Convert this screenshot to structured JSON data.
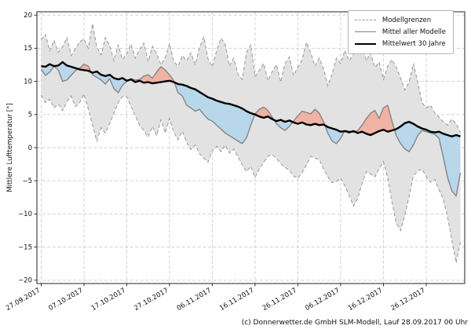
{
  "footer": "(c) Donnerwetter.de GmbH SLM-Modell, Lauf 28.09.2017 00 Uhr",
  "chart_data": {
    "type": "line",
    "title": "",
    "xlabel": "",
    "ylabel": "Mittlere Lufttemperatur [°]",
    "grid": true,
    "legend": {
      "position": "top-right",
      "entries": [
        "Modellgrenzen",
        "Mittel aller Modelle",
        "Mittelwert 30 Jahre"
      ]
    },
    "ylim": [
      -20.5,
      20.5
    ],
    "y_ticks": [
      -20,
      -15,
      -10,
      -5,
      0,
      5,
      10,
      15,
      20
    ],
    "y_tick_labels": [
      "−20",
      "−15",
      "−10",
      "−5",
      "0",
      "5",
      "10",
      "15",
      "20"
    ],
    "x_range_days": [
      -1,
      99
    ],
    "x_tick_days": [
      0,
      10,
      20,
      30,
      40,
      50,
      60,
      70,
      80,
      90
    ],
    "x_tick_labels": [
      "27.09.2017",
      "07.10.2017",
      "17.10.2017",
      "27.10.2017",
      "06.11.2017",
      "16.11.2017",
      "26.11.2017",
      "06.12.2017",
      "16.12.2017",
      "26.12.2017"
    ],
    "colors": {
      "band": "#e2e2e2",
      "band_edge": "#979797",
      "warm": "#f0b2a4",
      "cold": "#b8d7ea",
      "model_mean": "#7f7f7f",
      "mean30": "#000000",
      "grid": "#cccccc"
    },
    "band": {
      "name": "Modellgrenzen",
      "upper": [
        16.3,
        17.1,
        14.6,
        16.2,
        14.4,
        15.2,
        16.6,
        13.9,
        14.9,
        16.0,
        16.4,
        15.0,
        18.7,
        15.2,
        14.0,
        16.6,
        15.4,
        13.1,
        15.5,
        13.3,
        14.2,
        15.6,
        13.5,
        14.8,
        15.8,
        13.0,
        15.3,
        14.2,
        12.5,
        13.6,
        15.7,
        13.0,
        12.3,
        13.9,
        13.1,
        14.3,
        12.5,
        15.1,
        16.7,
        13.4,
        12.2,
        14.6,
        16.5,
        15.7,
        12.3,
        13.5,
        11.1,
        10.3,
        14.4,
        15.5,
        10.7,
        11.7,
        12.7,
        10.1,
        11.5,
        12.5,
        9.9,
        12.7,
        13.7,
        10.9,
        12.1,
        13.3,
        15.9,
        14.3,
        12.3,
        13.5,
        11.9,
        9.3,
        11.1,
        13.5,
        12.7,
        14.7,
        13.1,
        14.1,
        16.3,
        15.3,
        13.1,
        14.3,
        12.1,
        12.9,
        10.3,
        12.3,
        13.3,
        12.1,
        10.5,
        8.7,
        9.9,
        12.7,
        10.0,
        6.8,
        6.0,
        6.4,
        5.2,
        4.6,
        3.9,
        3.4,
        4.3,
        3.6,
        2.3
      ],
      "lower": [
        7.9,
        6.8,
        7.3,
        6.0,
        6.6,
        5.6,
        6.9,
        7.8,
        6.2,
        6.8,
        8.1,
        5.9,
        3.4,
        1.0,
        3.0,
        2.2,
        3.6,
        5.2,
        6.8,
        7.7,
        7.7,
        6.2,
        4.8,
        3.4,
        2.6,
        1.6,
        3.2,
        1.8,
        4.2,
        2.2,
        4.4,
        2.3,
        1.2,
        2.5,
        0.8,
        -0.3,
        0.4,
        -0.9,
        -1.6,
        -2.2,
        -0.5,
        0.2,
        -0.6,
        0.4,
        -0.8,
        -0.2,
        -1.4,
        -2.6,
        -3.6,
        -2.8,
        -4.5,
        -3.2,
        -2.2,
        -1.3,
        -1.1,
        -1.6,
        -2.4,
        -3.0,
        -3.4,
        -4.3,
        -4.6,
        -3.8,
        -2.6,
        -1.3,
        -1.6,
        -1.8,
        -3.2,
        -4.4,
        -5.3,
        -5.1,
        -4.6,
        -5.8,
        -7.2,
        -8.8,
        -7.6,
        -5.4,
        -3.6,
        -4.0,
        -4.4,
        -3.2,
        -2.1,
        -4.6,
        -8.2,
        -11.4,
        -12.5,
        -10.2,
        -7.4,
        -4.2,
        -3.6,
        -3.2,
        -4.4,
        -5.2,
        -4.8,
        -6.4,
        -7.8,
        -10.5,
        -14.0,
        -17.4,
        -14.2
      ]
    },
    "series": [
      {
        "name": "Mittel aller Modelle",
        "values": [
          11.8,
          10.9,
          11.4,
          12.3,
          11.7,
          10.0,
          10.2,
          10.9,
          11.6,
          12.0,
          12.6,
          12.3,
          11.0,
          10.6,
          10.2,
          9.6,
          10.4,
          8.9,
          8.3,
          9.4,
          10.0,
          10.4,
          10.2,
          10.3,
          10.8,
          11.0,
          10.5,
          11.4,
          12.2,
          11.7,
          11.0,
          10.1,
          8.3,
          7.8,
          6.4,
          6.0,
          5.5,
          5.8,
          5.0,
          4.3,
          4.0,
          3.4,
          2.8,
          2.2,
          1.8,
          1.4,
          1.0,
          0.6,
          1.5,
          3.4,
          5.1,
          5.8,
          6.1,
          5.6,
          4.6,
          3.6,
          3.0,
          2.6,
          3.2,
          4.0,
          4.8,
          5.5,
          5.3,
          5.1,
          5.8,
          5.2,
          3.9,
          2.2,
          1.0,
          0.6,
          1.4,
          2.6,
          2.5,
          2.3,
          2.6,
          3.4,
          4.4,
          5.2,
          5.6,
          4.4,
          6.0,
          6.4,
          4.0,
          1.8,
          0.6,
          -0.2,
          -0.6,
          0.4,
          1.8,
          2.6,
          2.4,
          2.2,
          2.0,
          1.4,
          -1.5,
          -4.5,
          -6.5,
          -7.3,
          -3.8
        ]
      },
      {
        "name": "Mittelwert 30 Jahre",
        "values": [
          12.3,
          12.2,
          12.6,
          12.3,
          12.4,
          12.9,
          12.4,
          12.2,
          12.0,
          11.8,
          11.7,
          11.6,
          11.3,
          11.5,
          11.0,
          10.8,
          11.0,
          10.5,
          10.3,
          10.5,
          10.1,
          10.3,
          9.9,
          10.1,
          9.8,
          9.9,
          9.7,
          9.8,
          9.9,
          10.0,
          10.1,
          9.9,
          9.6,
          9.5,
          9.3,
          9.0,
          8.8,
          8.4,
          8.0,
          7.6,
          7.4,
          7.1,
          6.9,
          6.7,
          6.6,
          6.4,
          6.2,
          5.9,
          5.5,
          5.2,
          5.0,
          4.7,
          4.5,
          4.7,
          4.3,
          4.0,
          4.2,
          3.9,
          4.1,
          3.8,
          3.6,
          3.8,
          3.5,
          3.4,
          3.6,
          3.4,
          3.5,
          3.1,
          2.9,
          2.7,
          2.4,
          2.5,
          2.3,
          2.5,
          2.2,
          2.4,
          2.1,
          1.9,
          2.2,
          2.5,
          2.7,
          2.4,
          2.6,
          2.8,
          3.2,
          3.7,
          3.9,
          3.6,
          3.2,
          2.9,
          2.7,
          2.4,
          2.3,
          2.4,
          2.1,
          1.9,
          1.7,
          1.9,
          1.7
        ]
      }
    ]
  }
}
